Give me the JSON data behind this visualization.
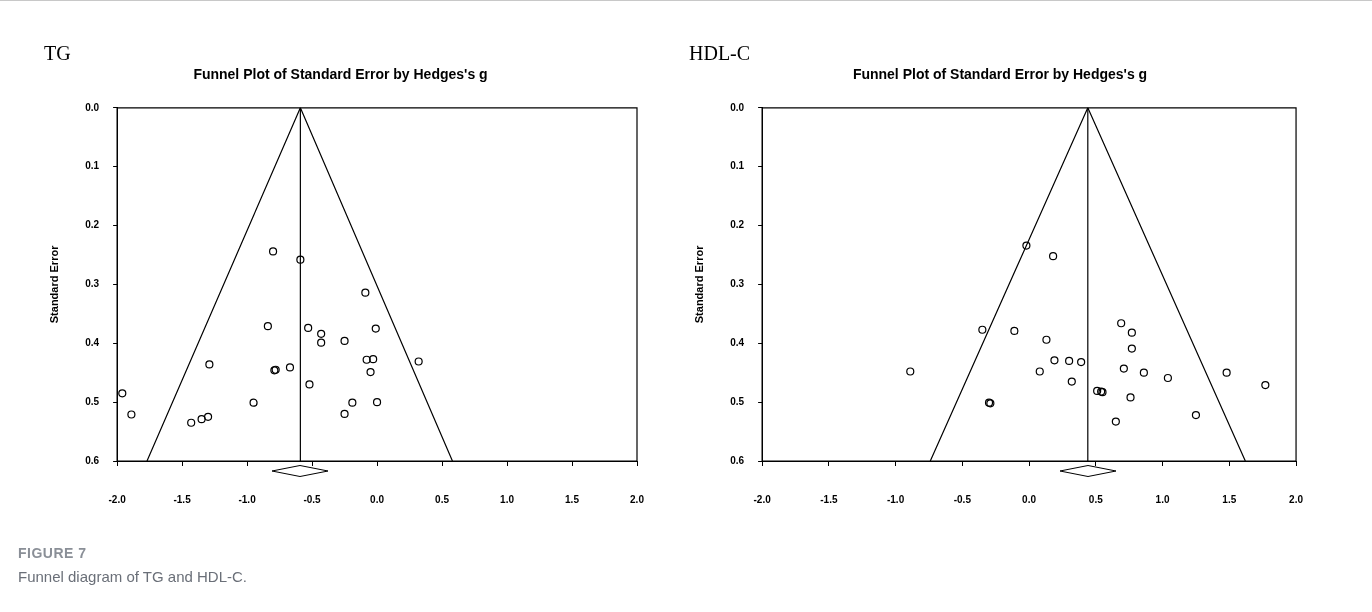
{
  "chart_data": [
    {
      "type": "scatter",
      "title": "TG",
      "subtitle": "Funnel Plot of Standard Error by Hedges's g",
      "ylabel": "Standard Error",
      "xlim": [
        -2.0,
        2.0
      ],
      "ylim": [
        0.6,
        0.0
      ],
      "xticks": [
        {
          "value": -2,
          "label": "-2.0"
        },
        {
          "value": -1.5,
          "label": "-1.5"
        },
        {
          "value": -1,
          "label": "-1.0"
        },
        {
          "value": -0.5,
          "label": "-0.5"
        },
        {
          "value": 0,
          "label": "0.0"
        },
        {
          "value": 0.5,
          "label": "0.5"
        },
        {
          "value": 1,
          "label": "1.0"
        },
        {
          "value": 1.5,
          "label": "1.5"
        },
        {
          "value": 2,
          "label": "2.0"
        }
      ],
      "yticks": [
        {
          "value": 0,
          "label": "0.0"
        },
        {
          "value": 0.1,
          "label": "0.1"
        },
        {
          "value": 0.2,
          "label": "0.2"
        },
        {
          "value": 0.3,
          "label": "0.3"
        },
        {
          "value": 0.4,
          "label": "0.4"
        },
        {
          "value": 0.5,
          "label": "0.5"
        },
        {
          "value": 0.6,
          "label": "0.6"
        }
      ],
      "marker": "circle",
      "grid": false,
      "legend": false,
      "ref_lines": [
        {
          "axis": "x",
          "value": -0.59,
          "color": "#000000"
        }
      ],
      "annotations": [
        "FIGURE 7",
        "Funnel diagram of TG and HDL-C."
      ],
      "series": [
        {
          "color": "#000000",
          "x": [
            -0.8,
            -0.59,
            -0.09,
            -0.84,
            -0.53,
            -0.43,
            -0.43,
            -0.01,
            -0.25,
            -0.08,
            -0.03,
            0.32,
            -0.05,
            -1.29,
            -0.79,
            -0.78,
            -0.67,
            -0.52,
            -1.96,
            -1.89,
            -0.95,
            -1.43,
            -1.35,
            -1.3,
            -0.19,
            -0.25,
            0.0
          ],
          "values": [
            0.244,
            0.258,
            0.314,
            0.371,
            0.374,
            0.384,
            0.399,
            0.375,
            0.396,
            0.428,
            0.427,
            0.431,
            0.449,
            0.436,
            0.446,
            0.445,
            0.441,
            0.47,
            0.485,
            0.521,
            0.501,
            0.535,
            0.529,
            0.525,
            0.501,
            0.52,
            0.5
          ]
        },
        {
          "type": "line",
          "marker": "none",
          "color": "#000000",
          "x": [
            -1.77,
            -0.59,
            0.58
          ],
          "values": [
            0.6,
            0.0,
            0.6
          ]
        }
      ]
    },
    {
      "type": "scatter",
      "title": "HDL-C",
      "subtitle": "Funnel Plot of Standard Error by Hedges's g",
      "ylabel": "Standard Error",
      "xlim": [
        -2.0,
        2.0
      ],
      "ylim": [
        0.6,
        0.0
      ],
      "xticks": [
        {
          "value": -2,
          "label": "-2.0"
        },
        {
          "value": -1.5,
          "label": "-1.5"
        },
        {
          "value": -1,
          "label": "-1.0"
        },
        {
          "value": -0.5,
          "label": "-0.5"
        },
        {
          "value": 0,
          "label": "0.0"
        },
        {
          "value": 0.5,
          "label": "0.5"
        },
        {
          "value": 1,
          "label": "1.0"
        },
        {
          "value": 1.5,
          "label": "1.5"
        },
        {
          "value": 2,
          "label": "2.0"
        }
      ],
      "yticks": [
        {
          "value": 0,
          "label": "0.0"
        },
        {
          "value": 0.1,
          "label": "0.1"
        },
        {
          "value": 0.2,
          "label": "0.2"
        },
        {
          "value": 0.3,
          "label": "0.3"
        },
        {
          "value": 0.4,
          "label": "0.4"
        },
        {
          "value": 0.5,
          "label": "0.5"
        },
        {
          "value": 0.6,
          "label": "0.6"
        }
      ],
      "marker": "circle",
      "grid": false,
      "legend": false,
      "ref_lines": [
        {
          "axis": "x",
          "value": 0.44,
          "color": "#000000"
        }
      ],
      "series": [
        {
          "color": "#000000",
          "x": [
            -0.02,
            0.18,
            -0.35,
            -0.11,
            0.13,
            0.69,
            0.77,
            0.77,
            0.19,
            0.3,
            0.39,
            0.08,
            0.32,
            0.71,
            0.86,
            1.04,
            1.48,
            1.77,
            0.51,
            0.54,
            0.55,
            0.76,
            -0.29,
            -0.3,
            0.65,
            1.25,
            -0.89
          ],
          "values": [
            0.234,
            0.252,
            0.377,
            0.379,
            0.394,
            0.366,
            0.382,
            0.409,
            0.429,
            0.43,
            0.432,
            0.448,
            0.465,
            0.443,
            0.45,
            0.459,
            0.45,
            0.471,
            0.481,
            0.482,
            0.483,
            0.492,
            0.502,
            0.501,
            0.533,
            0.522,
            0.448
          ]
        },
        {
          "type": "line",
          "marker": "none",
          "color": "#000000",
          "x": [
            -0.74,
            0.44,
            1.62
          ],
          "values": [
            0.6,
            0.0,
            0.6
          ]
        }
      ]
    }
  ]
}
